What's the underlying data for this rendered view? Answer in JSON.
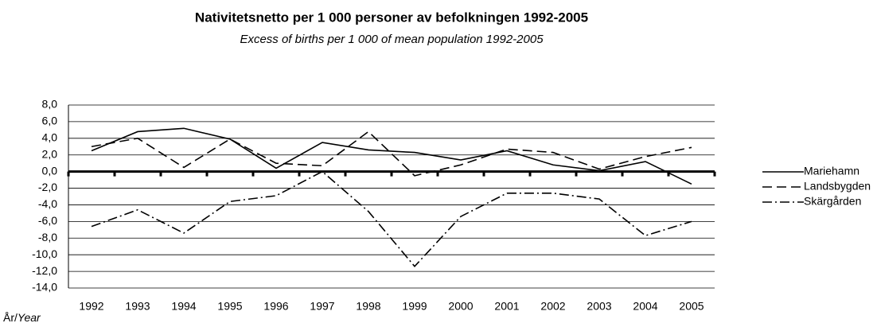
{
  "chart_data": {
    "type": "line",
    "title": "Nativitetsnetto per 1 000 personer av befolkningen 1992-2005",
    "subtitle": "Excess of births per 1 000 of mean population 1992-2005",
    "x_label": "År/",
    "x_label_en": "Year",
    "categories": [
      "1992",
      "1993",
      "1994",
      "1995",
      "1996",
      "1997",
      "1998",
      "1999",
      "2000",
      "2001",
      "2002",
      "2003",
      "2004",
      "2005"
    ],
    "series": [
      {
        "name": "Mariehamn",
        "color": "#000000",
        "dash": "solid",
        "values": [
          2.5,
          4.8,
          5.2,
          3.9,
          0.4,
          3.5,
          2.6,
          2.3,
          1.4,
          2.5,
          0.8,
          0.1,
          1.2,
          -1.5
        ]
      },
      {
        "name": "Landsbygden",
        "color": "#000000",
        "dash": "dashed",
        "values": [
          3.0,
          4.0,
          0.5,
          3.9,
          1.0,
          0.7,
          4.8,
          -0.5,
          0.8,
          2.7,
          2.3,
          0.3,
          1.8,
          2.9
        ]
      },
      {
        "name": "Skärgården",
        "color": "#000000",
        "dash": "dashdot",
        "values": [
          -6.6,
          -4.6,
          -7.4,
          -3.6,
          -2.9,
          0.0,
          -4.8,
          -11.4,
          -5.4,
          -2.6,
          -2.6,
          -3.3,
          -7.7,
          -6.0
        ]
      }
    ],
    "ylim": [
      -14,
      8
    ],
    "yticks": [
      {
        "value": 8,
        "label": "8,0"
      },
      {
        "value": 6,
        "label": "6,0"
      },
      {
        "value": 4,
        "label": "4,0"
      },
      {
        "value": 2,
        "label": "2,0"
      },
      {
        "value": 0,
        "label": "0,0"
      },
      {
        "value": -2,
        "label": "-2,0"
      },
      {
        "value": -4,
        "label": "-4,0"
      },
      {
        "value": -6,
        "label": "-6,0"
      },
      {
        "value": -8,
        "label": "-8,0"
      },
      {
        "value": -10,
        "label": "-10,0"
      },
      {
        "value": -12,
        "label": "-12,0"
      },
      {
        "value": -14,
        "label": "-14,0"
      }
    ],
    "grid": true,
    "legend": "right"
  }
}
